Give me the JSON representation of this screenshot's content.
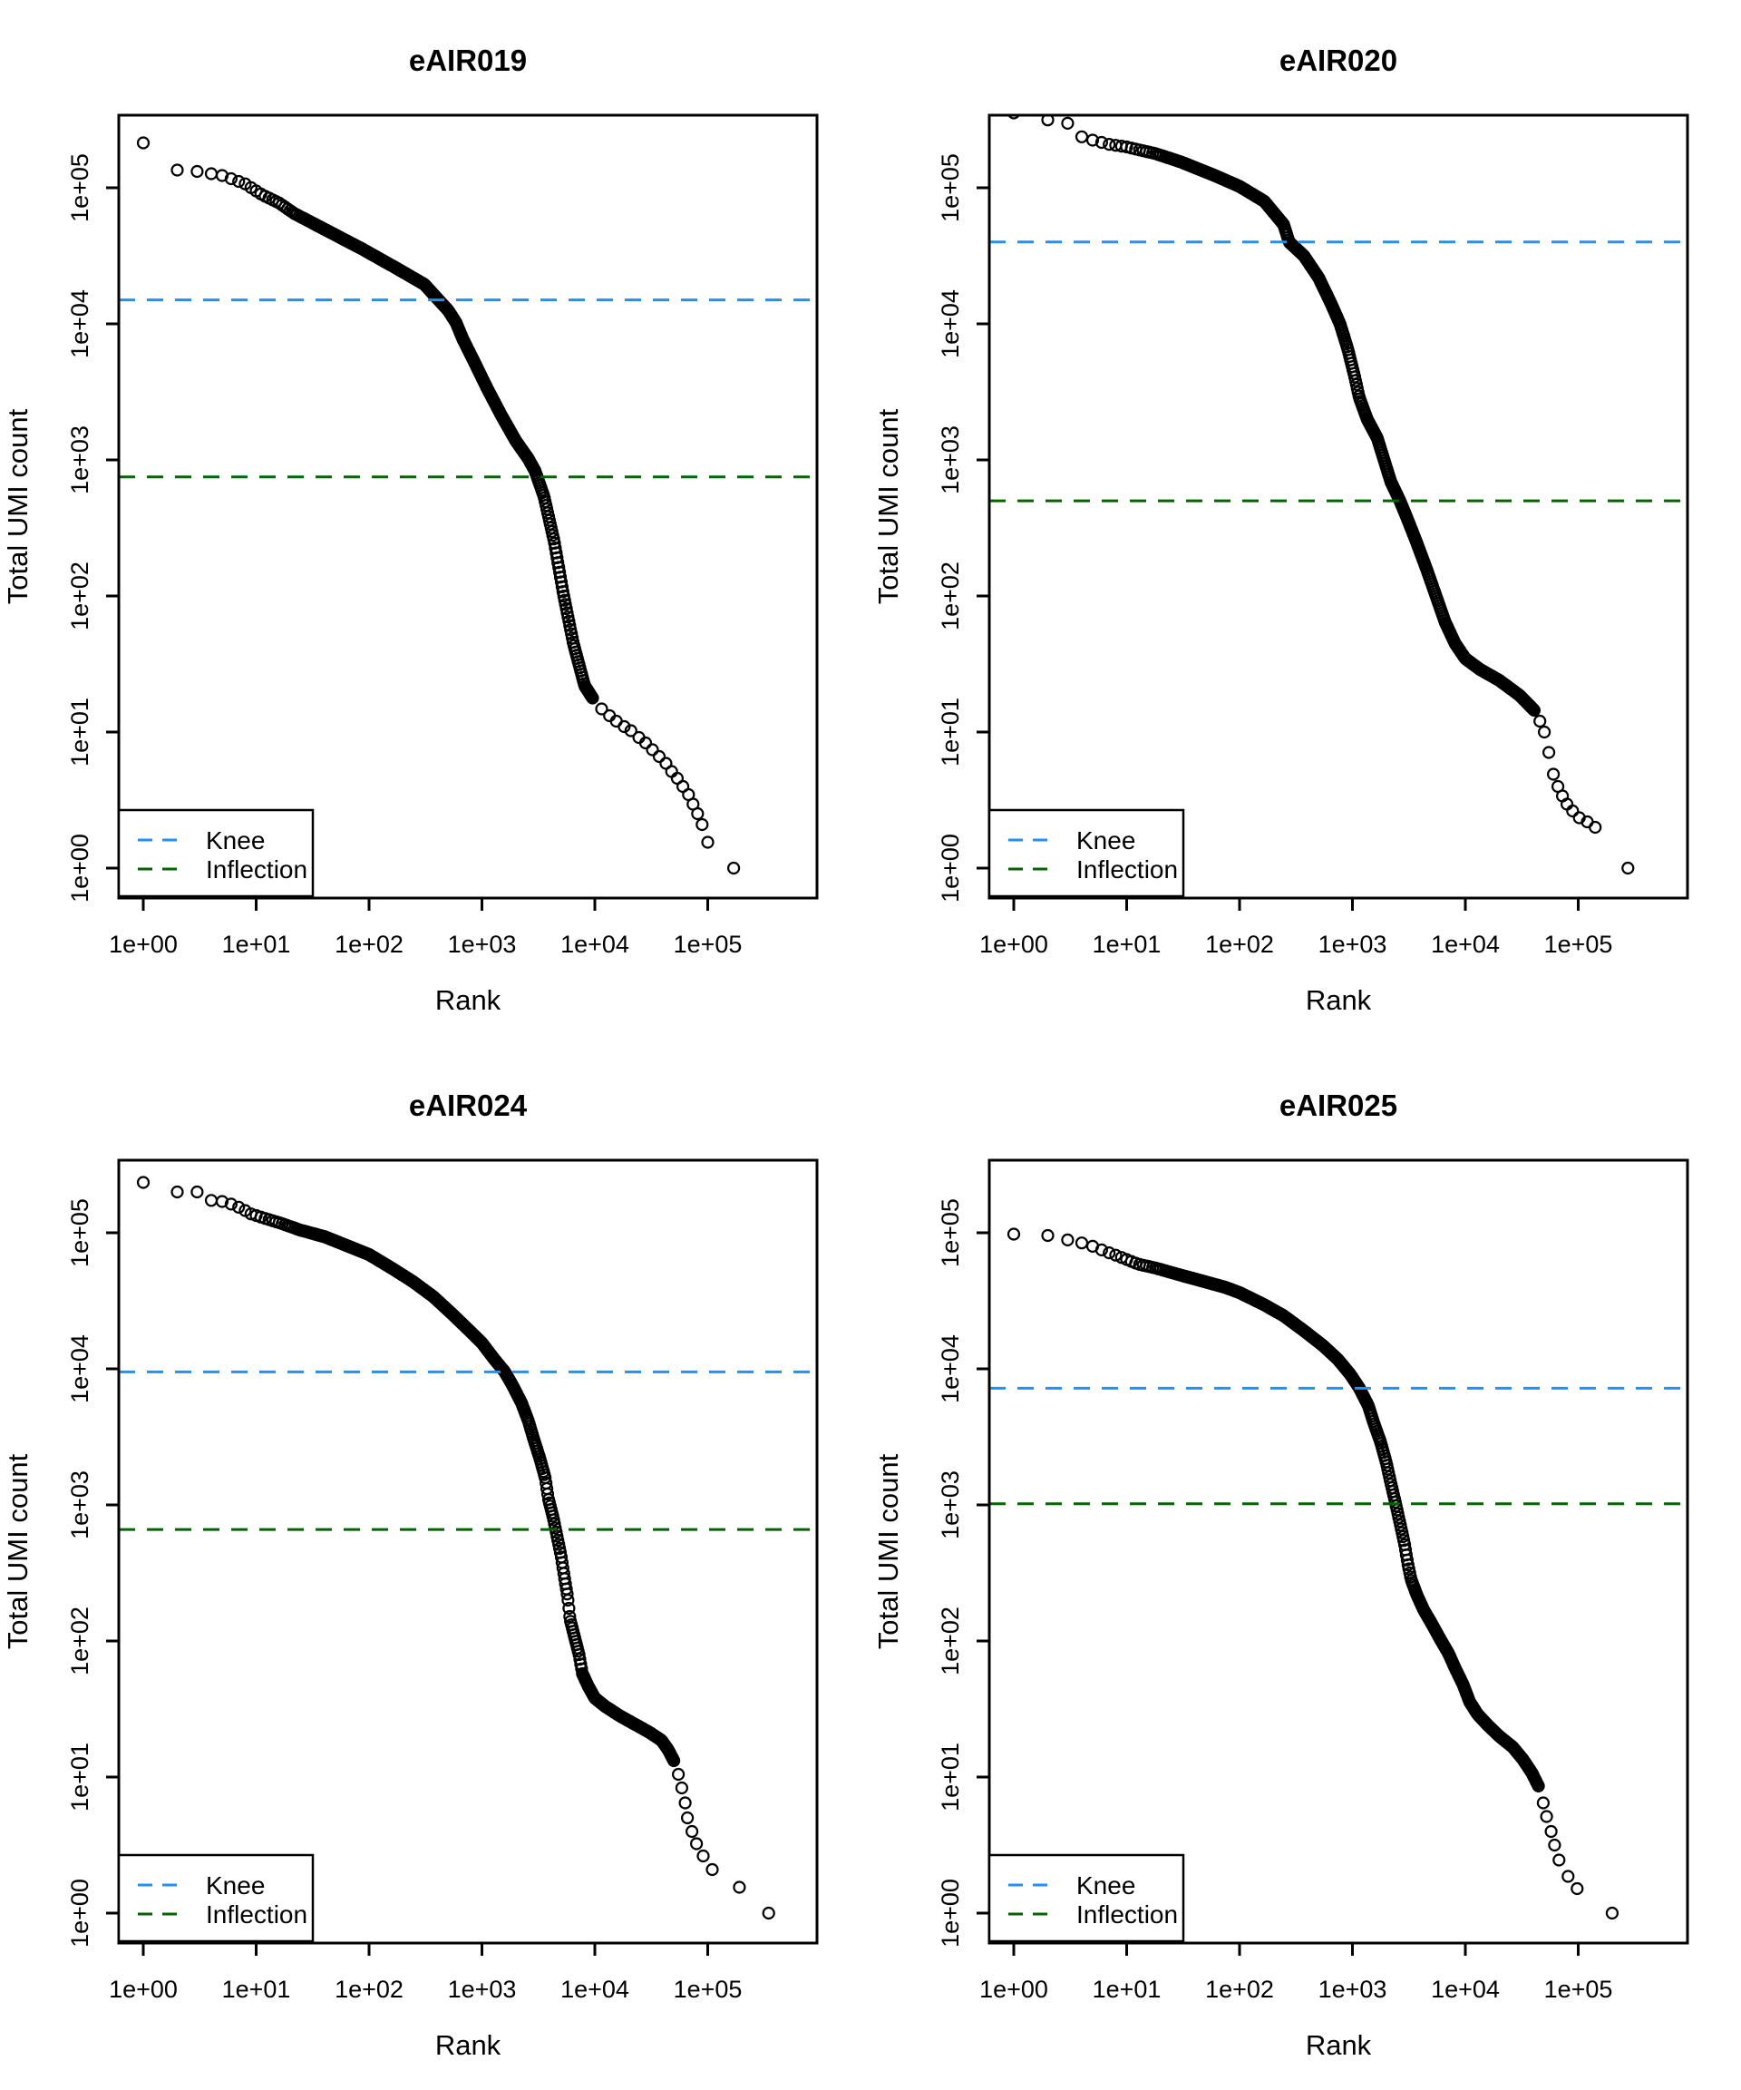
{
  "page": {
    "background": "#ffffff"
  },
  "shared": {
    "xlabel": "Rank",
    "ylabel": "Total UMI count",
    "x_tick_labels": [
      "1e+00",
      "1e+01",
      "1e+02",
      "1e+03",
      "1e+04",
      "1e+05"
    ],
    "y_tick_labels": [
      "1e+00",
      "1e+01",
      "1e+02",
      "1e+03",
      "1e+04",
      "1e+05"
    ],
    "legend": {
      "knee_label": "Knee",
      "inflection_label": "Inflection"
    },
    "colors": {
      "points": "#000000",
      "knee_line": "#1E90FF",
      "inflection_line": "#006400",
      "text": "#000000",
      "axis": "#000000",
      "legend_background": "#ffffff"
    }
  },
  "chart_data": [
    {
      "type": "scatter",
      "title": "eAIR019",
      "xlabel": "Rank",
      "ylabel": "Total UMI count",
      "x_scale": "log10",
      "y_scale": "log10",
      "x_range_log10": [
        -0.22,
        5.97
      ],
      "y_range_log10": [
        -0.22,
        5.53
      ],
      "knee": 15000,
      "inflection": 750,
      "legend": [
        "Knee",
        "Inflection"
      ],
      "curve_log10": [
        [
          0,
          5.33
        ],
        [
          0.3,
          5.13
        ],
        [
          0.48,
          5.12
        ],
        [
          0.7,
          5.09
        ],
        [
          0.9,
          5.03
        ],
        [
          1.05,
          4.95
        ],
        [
          1.2,
          4.89
        ],
        [
          1.34,
          4.81
        ],
        [
          1.64,
          4.68
        ],
        [
          1.94,
          4.55
        ],
        [
          2.24,
          4.41
        ],
        [
          2.49,
          4.29
        ],
        [
          2.6,
          4.19
        ],
        [
          2.7,
          4.1
        ],
        [
          2.77,
          4.01
        ],
        [
          2.83,
          3.89
        ],
        [
          2.92,
          3.74
        ],
        [
          3.05,
          3.52
        ],
        [
          3.17,
          3.33
        ],
        [
          3.3,
          3.14
        ],
        [
          3.41,
          3.01
        ],
        [
          3.47,
          2.92
        ],
        [
          3.55,
          2.73
        ],
        [
          3.64,
          2.4
        ],
        [
          3.72,
          2.02
        ],
        [
          3.81,
          1.65
        ],
        [
          3.91,
          1.34
        ],
        [
          3.98,
          1.25
        ]
      ],
      "band_end_log10": 3.98,
      "tail_points_log10": [
        [
          4.06,
          1.17
        ],
        [
          4.13,
          1.12
        ],
        [
          4.19,
          1.08
        ],
        [
          4.26,
          1.04
        ],
        [
          4.32,
          1.01
        ],
        [
          4.39,
          0.96
        ],
        [
          4.45,
          0.92
        ],
        [
          4.51,
          0.87
        ],
        [
          4.57,
          0.82
        ],
        [
          4.63,
          0.77
        ],
        [
          4.68,
          0.71
        ],
        [
          4.73,
          0.66
        ],
        [
          4.78,
          0.6
        ],
        [
          4.83,
          0.54
        ],
        [
          4.87,
          0.47
        ],
        [
          4.91,
          0.4
        ],
        [
          4.95,
          0.32
        ],
        [
          5.0,
          0.19
        ],
        [
          5.23,
          0.0
        ]
      ]
    },
    {
      "type": "scatter",
      "title": "eAIR020",
      "xlabel": "Rank",
      "ylabel": "Total UMI count",
      "x_scale": "log10",
      "y_scale": "log10",
      "x_range_log10": [
        -0.22,
        5.97
      ],
      "y_range_log10": [
        -0.22,
        5.53
      ],
      "knee": 40000,
      "inflection": 500,
      "legend": [
        "Knee",
        "Inflection"
      ],
      "curve_log10": [
        [
          0,
          5.55
        ],
        [
          0.28,
          5.5
        ],
        [
          0.46,
          5.49
        ],
        [
          0.58,
          5.38
        ],
        [
          0.7,
          5.35
        ],
        [
          0.84,
          5.32
        ],
        [
          1.0,
          5.3
        ],
        [
          1.26,
          5.25
        ],
        [
          1.48,
          5.19
        ],
        [
          1.78,
          5.09
        ],
        [
          2.0,
          5.01
        ],
        [
          2.22,
          4.9
        ],
        [
          2.39,
          4.73
        ],
        [
          2.44,
          4.6
        ],
        [
          2.57,
          4.5
        ],
        [
          2.7,
          4.34
        ],
        [
          2.81,
          4.15
        ],
        [
          2.89,
          4.0
        ],
        [
          2.96,
          3.81
        ],
        [
          3.02,
          3.61
        ],
        [
          3.06,
          3.46
        ],
        [
          3.13,
          3.3
        ],
        [
          3.22,
          3.16
        ],
        [
          3.28,
          3.0
        ],
        [
          3.34,
          2.84
        ],
        [
          3.42,
          2.7
        ],
        [
          3.48,
          2.58
        ],
        [
          3.57,
          2.39
        ],
        [
          3.66,
          2.19
        ],
        [
          3.74,
          2.0
        ],
        [
          3.82,
          1.81
        ],
        [
          3.91,
          1.65
        ],
        [
          4.0,
          1.54
        ],
        [
          4.13,
          1.46
        ],
        [
          4.3,
          1.38
        ],
        [
          4.48,
          1.27
        ],
        [
          4.61,
          1.16
        ]
      ],
      "band_end_log10": 4.61,
      "tail_points_log10": [
        [
          4.66,
          1.08
        ],
        [
          4.7,
          1.0
        ],
        [
          4.74,
          0.85
        ],
        [
          4.78,
          0.69
        ],
        [
          4.82,
          0.6
        ],
        [
          4.86,
          0.53
        ],
        [
          4.9,
          0.47
        ],
        [
          4.95,
          0.42
        ],
        [
          5.01,
          0.37
        ],
        [
          5.08,
          0.34
        ],
        [
          5.15,
          0.3
        ],
        [
          5.44,
          0.0
        ]
      ]
    },
    {
      "type": "scatter",
      "title": "eAIR024",
      "xlabel": "Rank",
      "ylabel": "Total UMI count",
      "x_scale": "log10",
      "y_scale": "log10",
      "x_range_log10": [
        -0.22,
        5.97
      ],
      "y_range_log10": [
        -0.22,
        5.53
      ],
      "knee": 9500,
      "inflection": 660,
      "legend": [
        "Knee",
        "Inflection"
      ],
      "curve_log10": [
        [
          0,
          5.37
        ],
        [
          0.3,
          5.3
        ],
        [
          0.48,
          5.3
        ],
        [
          0.58,
          5.24
        ],
        [
          0.7,
          5.23
        ],
        [
          0.78,
          5.21
        ],
        [
          0.87,
          5.18
        ],
        [
          0.95,
          5.14
        ],
        [
          1.06,
          5.11
        ],
        [
          1.22,
          5.07
        ],
        [
          1.39,
          5.02
        ],
        [
          1.61,
          4.97
        ],
        [
          1.82,
          4.9
        ],
        [
          2.0,
          4.84
        ],
        [
          2.22,
          4.73
        ],
        [
          2.39,
          4.64
        ],
        [
          2.57,
          4.53
        ],
        [
          2.74,
          4.4
        ],
        [
          2.89,
          4.28
        ],
        [
          3.0,
          4.19
        ],
        [
          3.11,
          4.07
        ],
        [
          3.2,
          3.98
        ],
        [
          3.27,
          3.88
        ],
        [
          3.35,
          3.75
        ],
        [
          3.41,
          3.62
        ],
        [
          3.46,
          3.48
        ],
        [
          3.51,
          3.35
        ],
        [
          3.56,
          3.2
        ],
        [
          3.59,
          3.04
        ],
        [
          3.63,
          2.91
        ],
        [
          3.66,
          2.79
        ],
        [
          3.7,
          2.63
        ],
        [
          3.73,
          2.47
        ],
        [
          3.76,
          2.32
        ],
        [
          3.78,
          2.16
        ],
        [
          3.82,
          2.03
        ],
        [
          3.86,
          1.9
        ],
        [
          3.89,
          1.76
        ],
        [
          3.94,
          1.67
        ],
        [
          4.0,
          1.58
        ],
        [
          4.09,
          1.52
        ],
        [
          4.22,
          1.45
        ],
        [
          4.35,
          1.39
        ],
        [
          4.48,
          1.33
        ],
        [
          4.59,
          1.27
        ],
        [
          4.65,
          1.2
        ],
        [
          4.7,
          1.12
        ]
      ],
      "band_end_log10": 4.7,
      "tail_points_log10": [
        [
          4.74,
          1.02
        ],
        [
          4.77,
          0.92
        ],
        [
          4.8,
          0.81
        ],
        [
          4.82,
          0.7
        ],
        [
          4.86,
          0.6
        ],
        [
          4.9,
          0.51
        ],
        [
          4.96,
          0.42
        ],
        [
          5.04,
          0.32
        ],
        [
          5.28,
          0.19
        ],
        [
          5.54,
          0.0
        ]
      ]
    },
    {
      "type": "scatter",
      "title": "eAIR025",
      "xlabel": "Rank",
      "ylabel": "Total UMI count",
      "x_scale": "log10",
      "y_scale": "log10",
      "x_range_log10": [
        -0.22,
        5.97
      ],
      "y_range_log10": [
        -0.22,
        5.53
      ],
      "knee": 7200,
      "inflection": 1020,
      "legend": [
        "Knee",
        "Inflection"
      ],
      "curve_log10": [
        [
          0,
          4.99
        ],
        [
          0.3,
          4.98
        ],
        [
          0.46,
          4.95
        ],
        [
          0.58,
          4.93
        ],
        [
          0.67,
          4.91
        ],
        [
          0.76,
          4.88
        ],
        [
          0.82,
          4.86
        ],
        [
          0.89,
          4.84
        ],
        [
          0.98,
          4.81
        ],
        [
          1.1,
          4.77
        ],
        [
          1.26,
          4.74
        ],
        [
          1.43,
          4.7
        ],
        [
          1.65,
          4.65
        ],
        [
          1.87,
          4.6
        ],
        [
          2.0,
          4.56
        ],
        [
          2.22,
          4.47
        ],
        [
          2.39,
          4.39
        ],
        [
          2.57,
          4.28
        ],
        [
          2.74,
          4.17
        ],
        [
          2.87,
          4.07
        ],
        [
          2.98,
          3.96
        ],
        [
          3.06,
          3.86
        ],
        [
          3.14,
          3.73
        ],
        [
          3.19,
          3.6
        ],
        [
          3.25,
          3.46
        ],
        [
          3.3,
          3.31
        ],
        [
          3.34,
          3.16
        ],
        [
          3.38,
          3.02
        ],
        [
          3.42,
          2.87
        ],
        [
          3.46,
          2.72
        ],
        [
          3.49,
          2.57
        ],
        [
          3.52,
          2.45
        ],
        [
          3.57,
          2.34
        ],
        [
          3.63,
          2.23
        ],
        [
          3.7,
          2.13
        ],
        [
          3.78,
          2.01
        ],
        [
          3.85,
          1.91
        ],
        [
          3.91,
          1.8
        ],
        [
          3.98,
          1.68
        ],
        [
          4.04,
          1.55
        ],
        [
          4.11,
          1.46
        ],
        [
          4.2,
          1.38
        ],
        [
          4.3,
          1.3
        ],
        [
          4.42,
          1.22
        ],
        [
          4.51,
          1.13
        ],
        [
          4.59,
          1.03
        ],
        [
          4.65,
          0.93
        ]
      ],
      "band_end_log10": 4.65,
      "tail_points_log10": [
        [
          4.69,
          0.81
        ],
        [
          4.72,
          0.71
        ],
        [
          4.76,
          0.6
        ],
        [
          4.79,
          0.5
        ],
        [
          4.83,
          0.39
        ],
        [
          4.91,
          0.27
        ],
        [
          4.99,
          0.18
        ],
        [
          5.3,
          0.0
        ]
      ]
    }
  ]
}
